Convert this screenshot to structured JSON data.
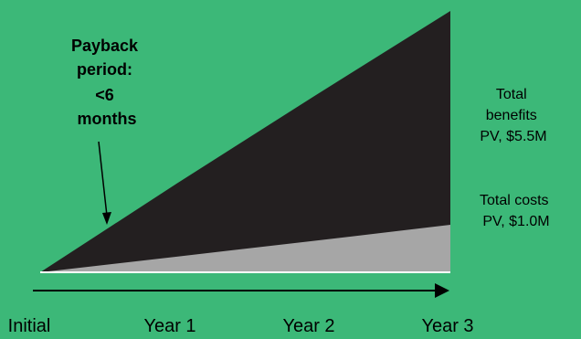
{
  "chart_data": {
    "type": "area",
    "categories": [
      "Initial",
      "Year 1",
      "Year 2",
      "Year 3"
    ],
    "x": [
      0,
      1,
      2,
      3
    ],
    "series": [
      {
        "name": "",
        "values": [
          0,
          1.87,
          3.7,
          5.5
        ]
      },
      {
        "name": "",
        "values": [
          0,
          0.33,
          0.66,
          1.0
        ]
      }
    ],
    "ylim": [
      0,
      5.5
    ],
    "grid": false,
    "legend": "none",
    "annotations": {
      "benefits": [
        "Total",
        "benefits",
        "PV, $5.5M"
      ],
      "costs": [
        "Total costs",
        "PV, $1.0M"
      ],
      "payback": [
        "Payback",
        "period:",
        "<6",
        "months"
      ]
    },
    "colors": {
      "background": "#3cb878",
      "benefits": "#231f20",
      "costs": "#a6a6a6",
      "baseline": "#ffffff",
      "arrow": "#000000"
    }
  }
}
